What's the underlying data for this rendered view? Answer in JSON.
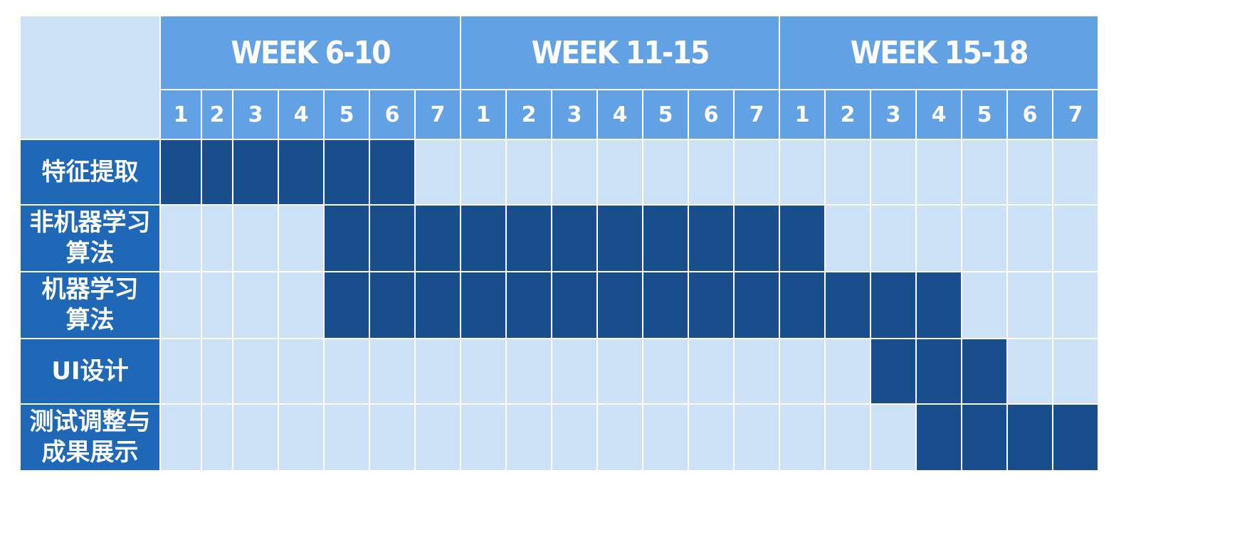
{
  "colors": {
    "header_bg": "#62a2e4",
    "task_label_bg": "#1f68b8",
    "active_cell": "#174e8b",
    "inactive_cell": "#cde1f7",
    "text": "#ffffff"
  },
  "chart_data": {
    "type": "table",
    "week_groups": [
      {
        "label": "WEEK 6-10",
        "days": [
          "1",
          "2",
          "3",
          "4",
          "5",
          "6",
          "7"
        ]
      },
      {
        "label": "WEEK 11-15",
        "days": [
          "1",
          "2",
          "3",
          "4",
          "5",
          "6",
          "7"
        ]
      },
      {
        "label": "WEEK 15-18",
        "days": [
          "1",
          "2",
          "3",
          "4",
          "5",
          "6",
          "7"
        ]
      }
    ],
    "tasks": [
      {
        "label_lines": [
          "特征提取"
        ],
        "start": 1,
        "end": 6
      },
      {
        "label_lines": [
          "非机器学习",
          "算法"
        ],
        "start": 5,
        "end": 15
      },
      {
        "label_lines": [
          "机器学习",
          "算法"
        ],
        "start": 5,
        "end": 18
      },
      {
        "label_lines": [
          "UI设计"
        ],
        "start": 17,
        "end": 19
      },
      {
        "label_lines": [
          "测试调整与",
          "成果展示"
        ],
        "start": 18,
        "end": 21
      }
    ]
  }
}
